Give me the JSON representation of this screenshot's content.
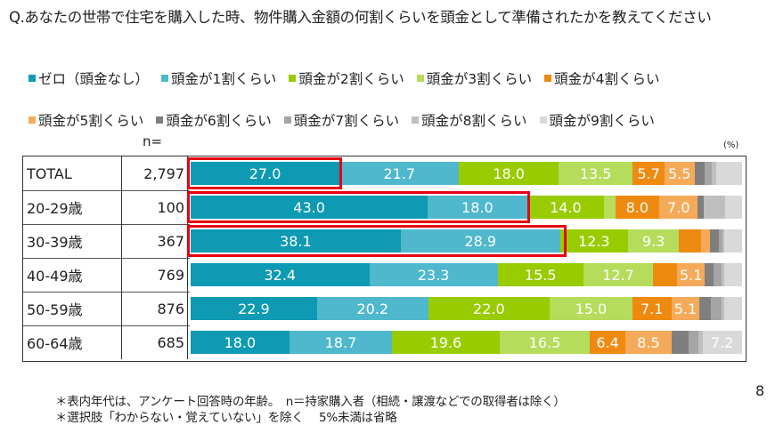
{
  "title": "Q.あなたの世帯で住宅を購入した時、物件購入金額の何割くらいを頭金として準備されたかを教えてください",
  "legend": {
    "row1": [
      {
        "label": "ゼロ（頭金なし）",
        "color": "#0e9ab2"
      },
      {
        "label": "頭金が1割くらい",
        "color": "#4fb8cc"
      },
      {
        "label": "頭金が2割くらい",
        "color": "#99cc00"
      },
      {
        "label": "頭金が3割くらい",
        "color": "#b5dc5a"
      },
      {
        "label": "頭金が4割くらい",
        "color": "#ef8a10"
      }
    ],
    "row2": [
      {
        "label": "頭金が5割くらい",
        "color": "#f5aa5a"
      },
      {
        "label": "頭金が6割くらい",
        "color": "#7f7f7f"
      },
      {
        "label": "頭金が7割くらい",
        "color": "#a5a5a5"
      },
      {
        "label": "頭金が8割くらい",
        "color": "#bfbfbf"
      },
      {
        "label": "頭金が9割くらい",
        "color": "#d9d9d9"
      }
    ]
  },
  "n_label": "n=",
  "unit_label": "(%)",
  "footnotes": [
    "＊表内年代は、アンケート回答時の年齢。　n＝持家購入者（相続・譲渡などでの取得者は除く）",
    "＊選択肢「わからない・覚えていない」を除く　 5%未満は省略"
  ],
  "page_number": "8",
  "chart_data": {
    "type": "bar",
    "orientation": "horizontal",
    "stacked": true,
    "percent": true,
    "title": "Q.あなたの世帯で住宅を購入した時、物件購入金額の何割くらいを頭金として準備されたかを教えてください",
    "xlabel": "",
    "ylabel": "",
    "unit": "%",
    "legend_position": "top",
    "categories": [
      "TOTAL",
      "20-29歳",
      "30-39歳",
      "40-49歳",
      "50-59歳",
      "60-64歳"
    ],
    "n": [
      "2,797",
      "100",
      "367",
      "769",
      "876",
      "685"
    ],
    "series": [
      {
        "name": "ゼロ（頭金なし）",
        "color": "#0e9ab2",
        "values": [
          27.0,
          43.0,
          38.1,
          32.4,
          22.9,
          18.0
        ],
        "labels": [
          "27.0",
          "43.0",
          "38.1",
          "32.4",
          "22.9",
          "18.0"
        ]
      },
      {
        "name": "頭金が1割くらい",
        "color": "#4fb8cc",
        "values": [
          21.7,
          18.0,
          28.9,
          23.3,
          20.2,
          18.7
        ],
        "labels": [
          "21.7",
          "18.0",
          "28.9",
          "23.3",
          "20.2",
          "18.7"
        ]
      },
      {
        "name": "頭金が2割くらい",
        "color": "#99cc00",
        "values": [
          18.0,
          14.0,
          12.3,
          15.5,
          22.0,
          19.6
        ],
        "labels": [
          "18.0",
          "14.0",
          "12.3",
          "15.5",
          "22.0",
          "19.6"
        ]
      },
      {
        "name": "頭金が3割くらい",
        "color": "#b5dc5a",
        "values": [
          13.5,
          2.0,
          9.3,
          12.7,
          15.0,
          16.5
        ],
        "labels": [
          "13.5",
          "",
          "9.3",
          "12.7",
          "15.0",
          "16.5"
        ]
      },
      {
        "name": "頭金が4割くらい",
        "color": "#ef8a10",
        "values": [
          5.7,
          8.0,
          4.0,
          4.3,
          7.1,
          6.4
        ],
        "labels": [
          "5.7",
          "8.0",
          "",
          "",
          "7.1",
          "6.4"
        ]
      },
      {
        "name": "頭金が5割くらい",
        "color": "#f5aa5a",
        "values": [
          5.5,
          7.0,
          1.6,
          5.1,
          5.1,
          8.5
        ],
        "labels": [
          "5.5",
          "7.0",
          "",
          "5.1",
          "5.1",
          "8.5"
        ]
      },
      {
        "name": "頭金が6割くらい",
        "color": "#7f7f7f",
        "values": [
          1.9,
          1.0,
          1.6,
          1.6,
          2.0,
          3.0
        ],
        "labels": [
          "",
          "",
          "",
          "",
          "",
          ""
        ]
      },
      {
        "name": "頭金が7割くらい",
        "color": "#a5a5a5",
        "values": [
          1.2,
          0.0,
          0.6,
          1.4,
          2.0,
          1.8
        ],
        "labels": [
          "",
          "",
          "",
          "",
          "",
          ""
        ]
      },
      {
        "name": "頭金が8割くらい",
        "color": "#bfbfbf",
        "values": [
          0.8,
          4.0,
          0.4,
          0.5,
          0.4,
          0.8
        ],
        "labels": [
          "",
          "",
          "",
          "",
          "",
          ""
        ]
      },
      {
        "name": "頭金が9割くらい",
        "color": "#d9d9d9",
        "values": [
          4.7,
          3.0,
          3.2,
          3.2,
          3.3,
          7.2
        ],
        "labels": [
          "",
          "",
          "",
          "",
          "",
          "7.2"
        ]
      }
    ],
    "highlights": [
      {
        "row": "TOTAL",
        "series": [
          "ゼロ（頭金なし）"
        ],
        "color": "#e60012"
      },
      {
        "row": "20-29歳",
        "series": [
          "ゼロ（頭金なし）",
          "頭金が1割くらい"
        ],
        "color": "#e60012"
      },
      {
        "row": "30-39歳",
        "series": [
          "ゼロ（頭金なし）",
          "頭金が1割くらい"
        ],
        "color": "#e60012"
      }
    ],
    "notes": "5%未満は省略 (values below 5% are not labeled; small segment widths estimated)"
  }
}
